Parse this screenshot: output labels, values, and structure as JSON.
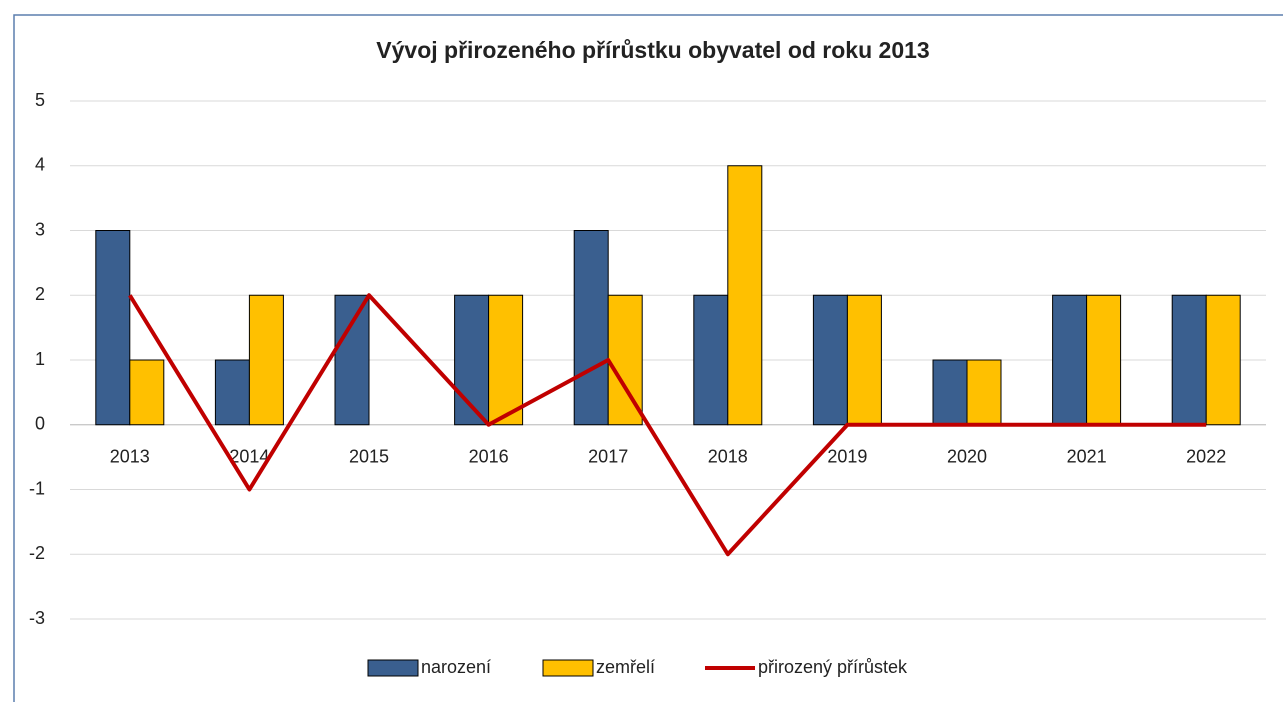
{
  "chart_data": {
    "type": "bar",
    "title": "Vývoj přirozeného přírůstku obyvatel od roku 2013",
    "categories": [
      "2013",
      "2014",
      "2015",
      "2016",
      "2017",
      "2018",
      "2019",
      "2020",
      "2021",
      "2022"
    ],
    "series": [
      {
        "name": "narození",
        "color": "#3a5f8f",
        "type": "bar",
        "values": [
          3,
          1,
          2,
          2,
          3,
          2,
          2,
          1,
          2,
          2
        ]
      },
      {
        "name": "zemřelí",
        "color": "#ffc000",
        "type": "bar",
        "values": [
          1,
          2,
          0,
          2,
          2,
          4,
          2,
          1,
          2,
          2
        ]
      },
      {
        "name": "přirozený přírůstek",
        "color": "#c00000",
        "type": "line",
        "values": [
          2,
          -1,
          2,
          0,
          1,
          -2,
          0,
          0,
          0,
          0
        ]
      }
    ],
    "ylim": [
      -3,
      5
    ],
    "yticks": [
      -3,
      -2,
      -1,
      0,
      1,
      2,
      3,
      4,
      5
    ],
    "grid": true,
    "legend": "bottom"
  }
}
